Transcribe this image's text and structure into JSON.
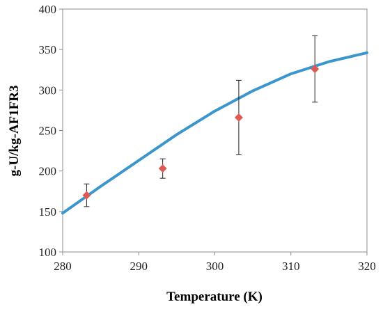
{
  "chart_data": {
    "type": "scatter",
    "xlabel": "Temperature (K)",
    "ylabel": "g-U/kg-AF1FR3",
    "xlim": [
      280,
      320
    ],
    "ylim": [
      100,
      400
    ],
    "x_ticks": [
      280,
      290,
      300,
      310,
      320
    ],
    "y_ticks": [
      100,
      150,
      200,
      250,
      300,
      350,
      400
    ],
    "grid": false,
    "legend": "none",
    "series": [
      {
        "type": "scatter",
        "marker": "diamond",
        "color": "#e05a55",
        "x": [
          283.15,
          293.15,
          303.15,
          313.15
        ],
        "y": [
          170,
          203,
          266,
          326
        ],
        "error": [
          14,
          12,
          46,
          41
        ]
      },
      {
        "type": "line",
        "color": "#3a96cc",
        "x": [
          280,
          285,
          290,
          295,
          300,
          305,
          310,
          315,
          320
        ],
        "y": [
          148,
          181,
          213,
          245,
          274,
          299,
          320,
          335,
          346
        ]
      }
    ]
  }
}
